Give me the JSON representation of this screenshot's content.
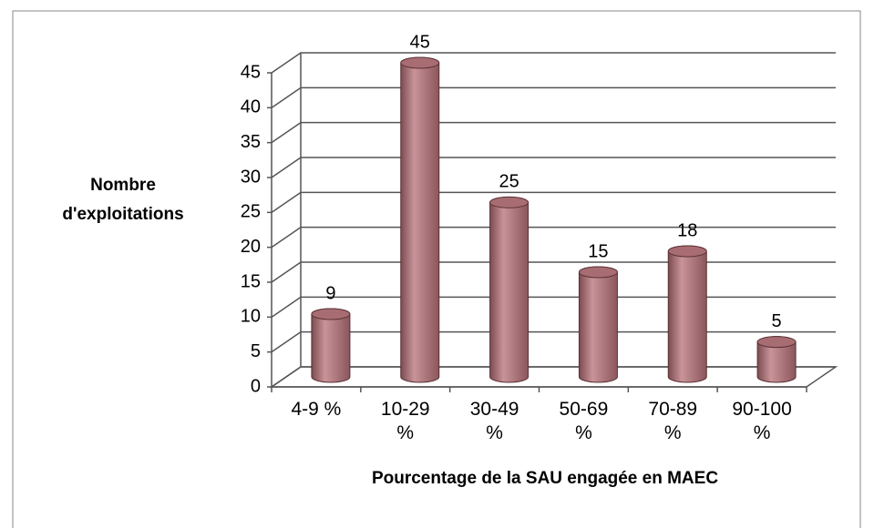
{
  "chart_data": {
    "type": "bar",
    "categories": [
      "4-9 %",
      "10-29 %",
      "30-49 %",
      "50-69 %",
      "70-89 %",
      "90-100 %"
    ],
    "values": [
      9,
      45,
      25,
      15,
      18,
      5
    ],
    "color": "#a86d73",
    "ylim": [
      0,
      45
    ],
    "yticks": [
      0,
      5,
      10,
      15,
      20,
      25,
      30,
      35,
      40,
      45
    ],
    "grid": true,
    "y_label": "Nombre d'exploitations",
    "x_label": "Pourcentage de la SAU engagée en MAEC"
  }
}
